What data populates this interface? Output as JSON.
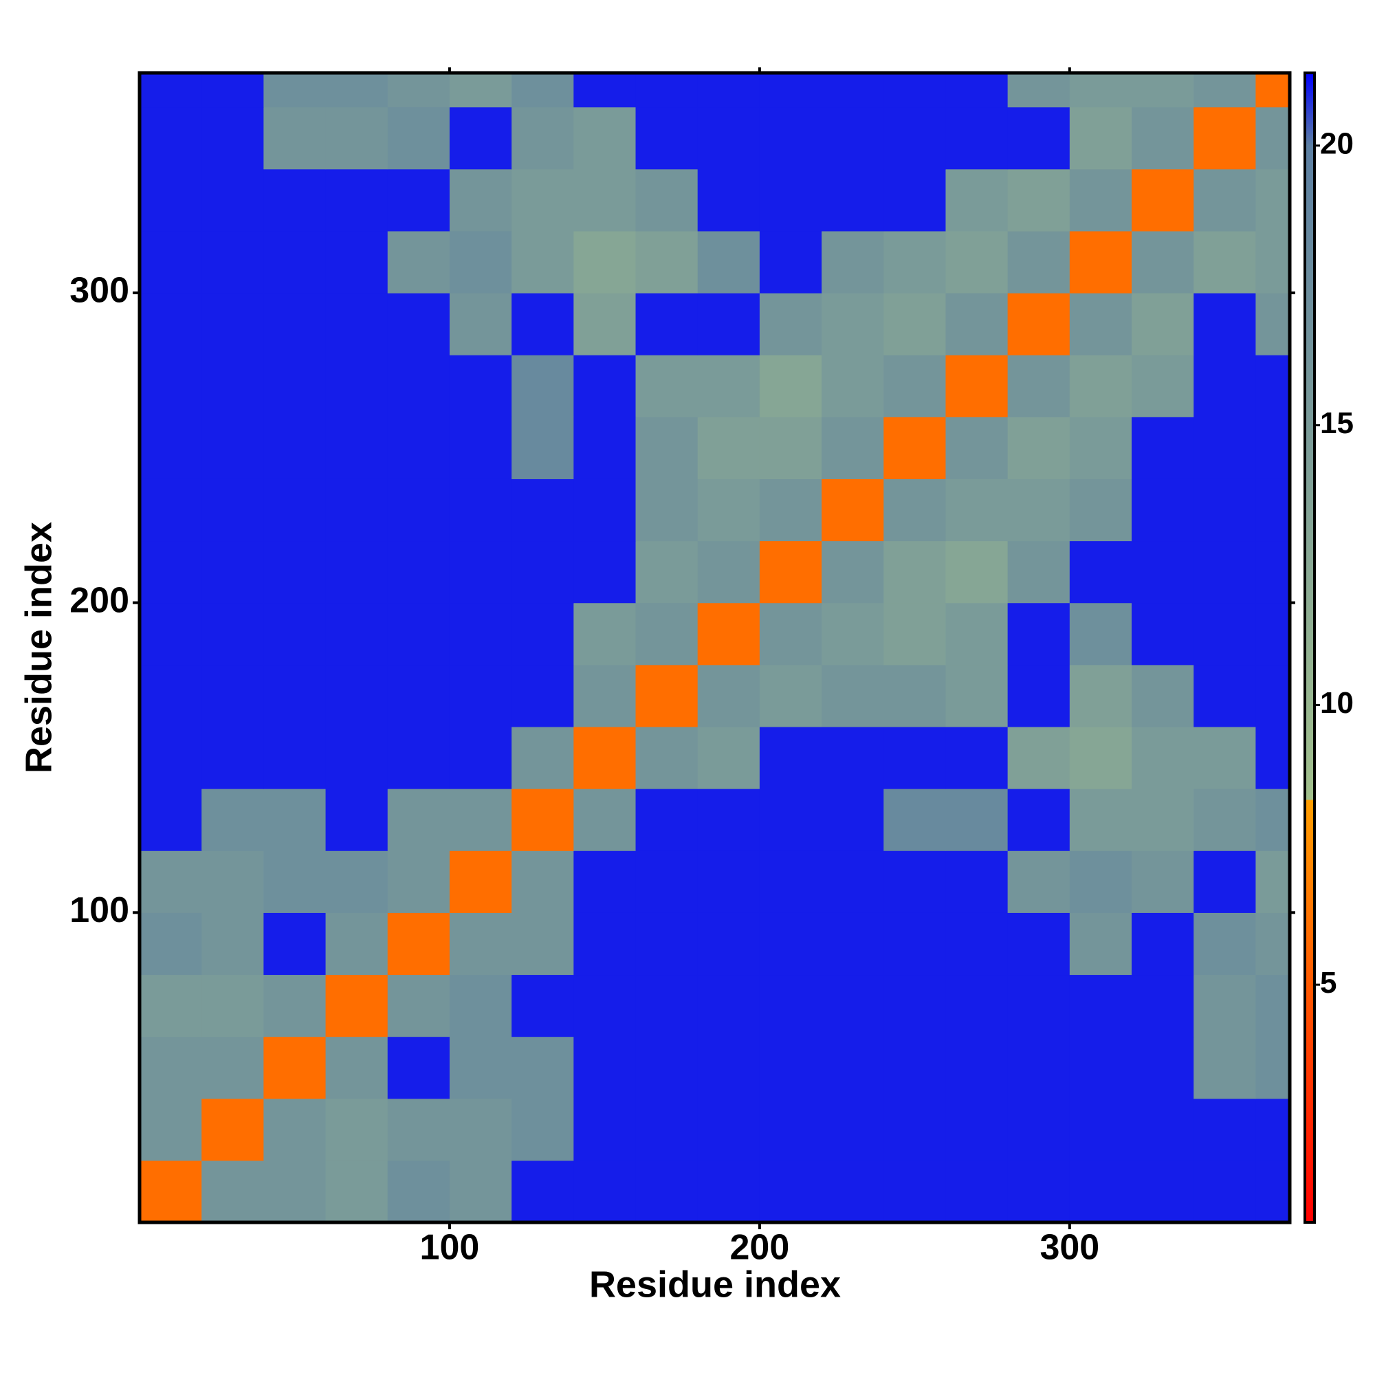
{
  "chart_data": {
    "type": "heatmap",
    "x_label": "Residue index",
    "y_label": "Residue index",
    "x": [
      10,
      30,
      50,
      70,
      90,
      110,
      130,
      150,
      170,
      190,
      210,
      230,
      250,
      270,
      290,
      310,
      330,
      350,
      370
    ],
    "y": [
      10,
      30,
      50,
      70,
      90,
      110,
      130,
      150,
      170,
      190,
      210,
      230,
      250,
      270,
      290,
      310,
      330,
      350,
      370
    ],
    "z": [
      [
        6,
        16,
        16,
        15,
        17,
        16,
        21,
        21,
        21,
        21,
        21,
        21,
        21,
        21,
        21,
        21,
        21,
        21,
        21
      ],
      [
        16,
        6,
        16,
        15,
        16,
        16,
        17,
        21,
        21,
        21,
        21,
        21,
        21,
        21,
        21,
        21,
        21,
        21,
        21
      ],
      [
        16,
        16,
        6,
        16,
        21,
        17,
        17,
        21,
        21,
        21,
        21,
        21,
        21,
        21,
        21,
        21,
        21,
        16,
        17
      ],
      [
        15,
        15,
        16,
        6,
        16,
        17,
        21,
        21,
        21,
        21,
        21,
        21,
        21,
        21,
        21,
        21,
        21,
        16,
        17
      ],
      [
        17,
        16,
        21,
        16,
        6,
        16,
        16,
        21,
        21,
        21,
        21,
        21,
        21,
        21,
        21,
        16,
        21,
        17,
        16
      ],
      [
        16,
        16,
        17,
        17,
        16,
        6,
        16,
        21,
        21,
        21,
        21,
        21,
        21,
        21,
        16,
        17,
        16,
        21,
        15
      ],
      [
        21,
        17,
        17,
        21,
        16,
        16,
        6,
        16,
        21,
        21,
        21,
        21,
        18,
        18,
        21,
        15,
        15,
        16,
        17
      ],
      [
        21,
        21,
        21,
        21,
        21,
        21,
        16,
        6,
        16,
        15,
        21,
        21,
        21,
        21,
        14,
        13,
        15,
        15,
        21
      ],
      [
        21,
        21,
        21,
        21,
        21,
        21,
        21,
        16,
        6,
        16,
        15,
        16,
        16,
        15,
        21,
        14,
        16,
        21,
        21
      ],
      [
        21,
        21,
        21,
        21,
        21,
        21,
        21,
        15,
        16,
        6,
        16,
        15,
        14,
        15,
        21,
        17,
        21,
        21,
        21
      ],
      [
        21,
        21,
        21,
        21,
        21,
        21,
        21,
        21,
        15,
        16,
        6,
        16,
        14,
        13,
        16,
        21,
        21,
        21,
        21
      ],
      [
        21,
        21,
        21,
        21,
        21,
        21,
        21,
        21,
        16,
        15,
        16,
        6,
        16,
        15,
        15,
        16,
        21,
        21,
        21
      ],
      [
        21,
        21,
        21,
        21,
        21,
        21,
        18,
        21,
        16,
        14,
        14,
        16,
        6,
        16,
        14,
        15,
        21,
        21,
        21
      ],
      [
        21,
        21,
        21,
        21,
        21,
        21,
        18,
        21,
        15,
        15,
        13,
        15,
        16,
        6,
        16,
        14,
        15,
        21,
        21
      ],
      [
        21,
        21,
        21,
        21,
        21,
        16,
        21,
        14,
        21,
        21,
        16,
        15,
        14,
        16,
        6,
        16,
        14,
        21,
        16
      ],
      [
        21,
        21,
        21,
        21,
        16,
        17,
        15,
        13,
        14,
        17,
        21,
        16,
        15,
        14,
        16,
        6,
        16,
        14,
        15
      ],
      [
        21,
        21,
        21,
        21,
        21,
        16,
        15,
        15,
        16,
        21,
        21,
        21,
        21,
        15,
        14,
        16,
        6,
        16,
        15
      ],
      [
        21,
        21,
        16,
        16,
        17,
        21,
        16,
        15,
        21,
        21,
        21,
        21,
        21,
        21,
        21,
        14,
        16,
        6,
        16
      ],
      [
        21,
        21,
        17,
        17,
        16,
        15,
        17,
        21,
        21,
        21,
        21,
        21,
        21,
        21,
        16,
        15,
        15,
        16,
        6
      ]
    ],
    "xlim": [
      0,
      371
    ],
    "ylim": [
      0,
      371
    ],
    "xticks": [
      100,
      200,
      300
    ],
    "yticks": [
      100,
      200,
      300
    ],
    "zlim": [
      0.75,
      21.3
    ],
    "zticks": [
      5,
      10,
      15,
      20
    ],
    "colorscale": [
      {
        "value": 0.75,
        "color": "#ff0000"
      },
      {
        "value": 8.3,
        "color": "#ff9e00"
      },
      {
        "value": 8.3,
        "color": "#a2c08c"
      },
      {
        "value": 20,
        "color": "#5c7fa2"
      },
      {
        "value": 21.3,
        "color": "#0000ff"
      }
    ]
  }
}
